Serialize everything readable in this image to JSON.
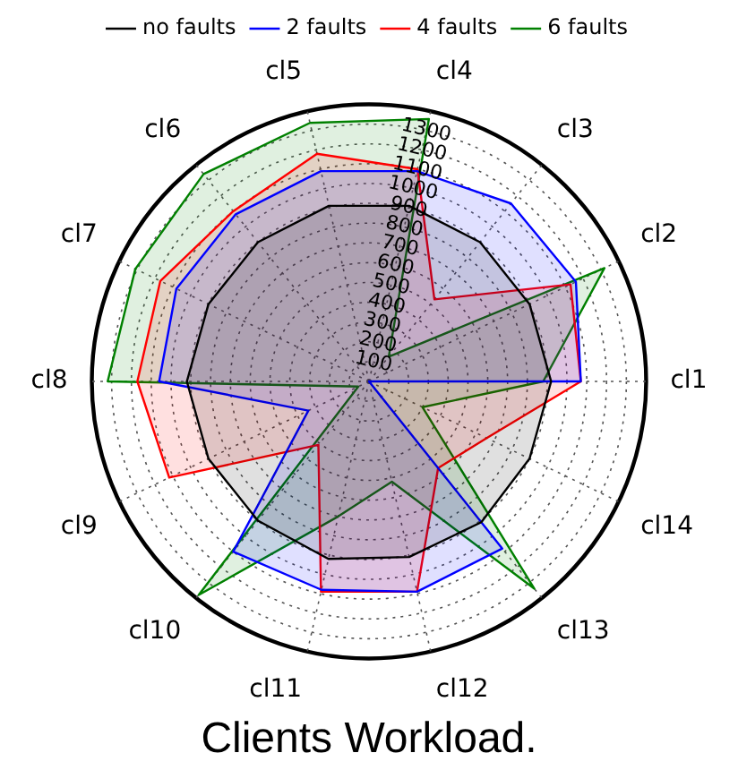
{
  "chart_data": {
    "type": "radar",
    "title": "Clients Workload.",
    "categories": [
      "cl4",
      "cl3",
      "cl2",
      "cl1",
      "cl14",
      "cl13",
      "cl12",
      "cl11",
      "cl10",
      "cl9",
      "cl8",
      "cl7",
      "cl6",
      "cl5"
    ],
    "series": [
      {
        "name": "no faults",
        "color": "#000000",
        "values": [
          910,
          900,
          900,
          920,
          900,
          910,
          910,
          920,
          900,
          900,
          920,
          900,
          900,
          910
        ]
      },
      {
        "name": "2 faults",
        "color": "#0000ff",
        "values": [
          1090,
          1150,
          1160,
          1070,
          0,
          1080,
          1090,
          1080,
          1100,
          340,
          1060,
          1080,
          1080,
          1090
        ]
      },
      {
        "name": "4 faults",
        "color": "#ff0000",
        "values": [
          1100,
          530,
          1130,
          1070,
          660,
          560,
          1090,
          1090,
          410,
          1120,
          1170,
          1170,
          1100,
          1180
        ]
      },
      {
        "name": "6 faults",
        "color": "#008000",
        "values": [
          1360,
          160,
          1320,
          880,
          300,
          1340,
          520,
          700,
          1380,
          60,
          1320,
          1310,
          1340,
          1340
        ]
      }
    ],
    "ylim": [
      0,
      1400
    ],
    "yticks": [
      100,
      200,
      300,
      400,
      500,
      600,
      700,
      800,
      900,
      1000,
      1100,
      1200,
      1300
    ],
    "grid": true,
    "legend": "top",
    "marker": "none",
    "line_style": "solid"
  }
}
